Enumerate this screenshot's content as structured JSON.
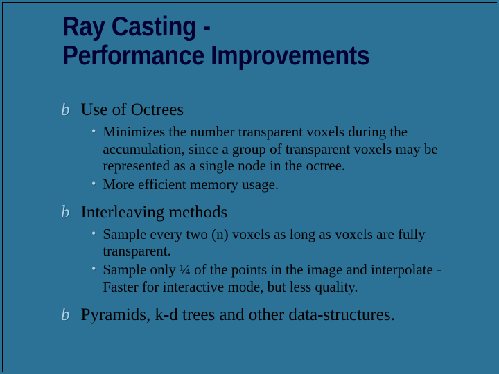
{
  "slide": {
    "background_color": "#2b7296",
    "title_color": "#000033",
    "body_text_color": "#000000",
    "bullet_color": "#b0d0e8",
    "title_line1": "Ray Casting -",
    "title_line2": "Performance Improvements",
    "title_fontsize": 39,
    "main_fontsize": 25,
    "sub_fontsize": 21,
    "items": [
      {
        "label": "Use of Octrees",
        "sub": [
          "Minimizes the number transparent voxels during the accumulation, since a group of transparent voxels may be represented as a single node in the octree.",
          "More efficient memory usage."
        ]
      },
      {
        "label": "Interleaving methods",
        "sub": [
          "Sample every two (n) voxels as long as voxels are fully transparent.",
          "Sample only ¼ of the points in the image and interpolate - Faster for interactive mode, but less quality."
        ]
      },
      {
        "label": "Pyramids, k-d trees and other data-structures.",
        "sub": []
      }
    ]
  }
}
